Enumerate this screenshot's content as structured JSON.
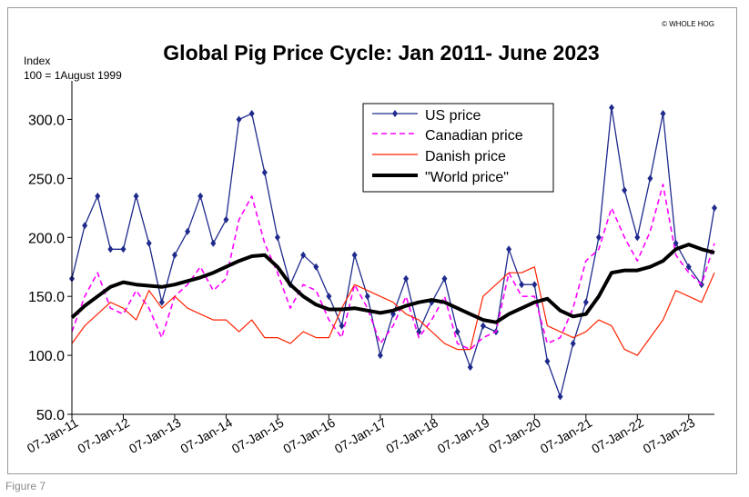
{
  "figure_caption": "Figure 7",
  "chart_data": {
    "type": "line",
    "title": "Global Pig Price Cycle: Jan 2011- June 2023",
    "ylabel_line1": "Index",
    "ylabel_line2": "100 = 1August 1999",
    "copyright": "© WHOLE HOG",
    "ylim": [
      50,
      325
    ],
    "yticks": [
      50,
      100,
      150,
      200,
      250,
      300
    ],
    "ytick_labels": [
      "50.0",
      "100.0",
      "150.0",
      "200.0",
      "250.0",
      "300.0"
    ],
    "xlim": [
      2011.0,
      2023.5
    ],
    "xticks": [
      2011,
      2012,
      2013,
      2014,
      2015,
      2016,
      2017,
      2018,
      2019,
      2020,
      2021,
      2022,
      2023
    ],
    "xtick_labels": [
      "07-Jan-11",
      "07-Jan-12",
      "07-Jan-13",
      "07-Jan-14",
      "07-Jan-15",
      "07-Jan-16",
      "07-Jan-17",
      "07-Jan-18",
      "07-Jan-19",
      "07-Jan-20",
      "07-Jan-21",
      "07-Jan-22",
      "07-Jan-23"
    ],
    "legend_position": "top-center",
    "grid": false,
    "x": [
      2011.0,
      2011.25,
      2011.5,
      2011.75,
      2012.0,
      2012.25,
      2012.5,
      2012.75,
      2013.0,
      2013.25,
      2013.5,
      2013.75,
      2014.0,
      2014.25,
      2014.5,
      2014.75,
      2015.0,
      2015.25,
      2015.5,
      2015.75,
      2016.0,
      2016.25,
      2016.5,
      2016.75,
      2017.0,
      2017.25,
      2017.5,
      2017.75,
      2018.0,
      2018.25,
      2018.5,
      2018.75,
      2019.0,
      2019.25,
      2019.5,
      2019.75,
      2020.0,
      2020.25,
      2020.5,
      2020.75,
      2021.0,
      2021.25,
      2021.5,
      2021.75,
      2022.0,
      2022.25,
      2022.5,
      2022.75,
      2023.0,
      2023.25,
      2023.5
    ],
    "series": [
      {
        "name": "US price",
        "color": "#1f2a8c",
        "style": "line-markers",
        "width": 1.3,
        "values": [
          165,
          210,
          235,
          190,
          190,
          235,
          195,
          145,
          185,
          205,
          235,
          195,
          215,
          300,
          305,
          255,
          200,
          160,
          185,
          175,
          150,
          125,
          185,
          150,
          100,
          135,
          165,
          120,
          145,
          165,
          120,
          90,
          125,
          120,
          190,
          160,
          160,
          95,
          65,
          110,
          145,
          200,
          310,
          240,
          200,
          250,
          305,
          195,
          175,
          160,
          225
        ]
      },
      {
        "name": "Canadian price",
        "color": "#ff00ff",
        "style": "dashed",
        "width": 1.6,
        "values": [
          120,
          150,
          170,
          140,
          135,
          155,
          140,
          115,
          150,
          160,
          175,
          155,
          165,
          215,
          235,
          195,
          170,
          140,
          160,
          155,
          130,
          115,
          160,
          140,
          110,
          125,
          150,
          115,
          130,
          150,
          110,
          105,
          115,
          120,
          170,
          150,
          150,
          110,
          115,
          140,
          180,
          190,
          225,
          200,
          180,
          205,
          245,
          185,
          170,
          160,
          195
        ]
      },
      {
        "name": "Danish price",
        "color": "#ff2200",
        "style": "solid",
        "width": 1.2,
        "values": [
          110,
          125,
          135,
          145,
          140,
          130,
          155,
          140,
          150,
          140,
          135,
          130,
          130,
          120,
          130,
          115,
          115,
          110,
          120,
          115,
          115,
          140,
          160,
          155,
          150,
          145,
          135,
          130,
          120,
          110,
          105,
          105,
          150,
          160,
          170,
          170,
          175,
          125,
          120,
          115,
          120,
          130,
          125,
          105,
          100,
          115,
          130,
          155,
          150,
          145,
          170
        ]
      },
      {
        "name": "\"World price\"",
        "color": "#000000",
        "style": "solid",
        "width": 4,
        "values": [
          132,
          142,
          150,
          158,
          162,
          160,
          159,
          158,
          160,
          163,
          166,
          170,
          175,
          180,
          184,
          185,
          175,
          160,
          150,
          143,
          139,
          139,
          140,
          138,
          136,
          138,
          142,
          145,
          147,
          145,
          140,
          135,
          130,
          128,
          135,
          140,
          145,
          148,
          138,
          133,
          135,
          150,
          170,
          172,
          172,
          175,
          180,
          190,
          194,
          190,
          187
        ]
      }
    ]
  }
}
